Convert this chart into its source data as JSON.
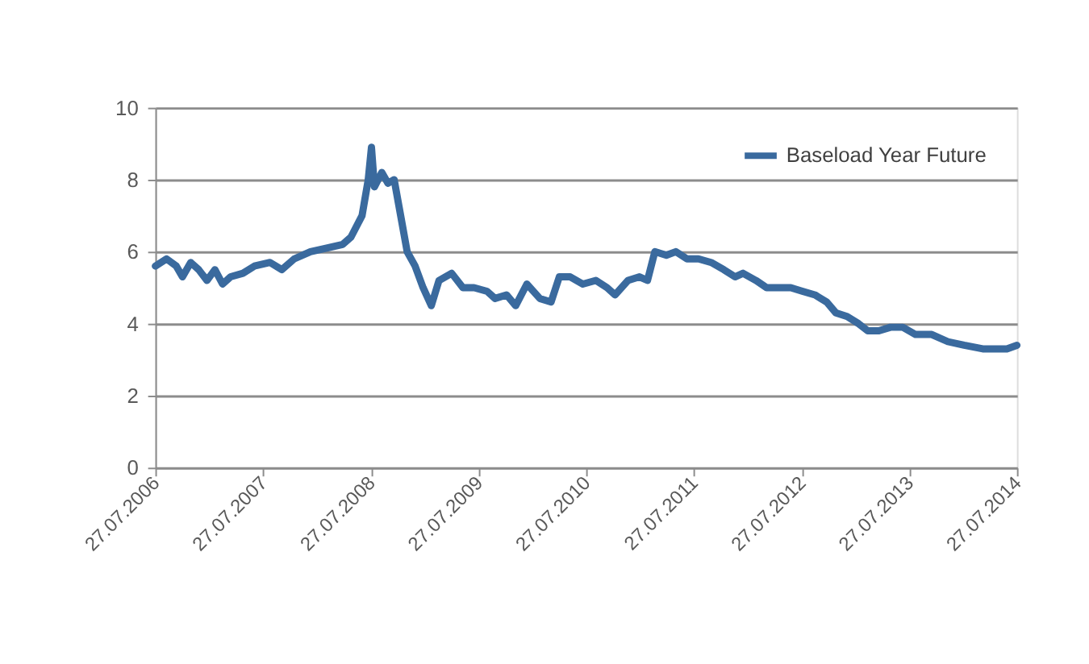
{
  "chart_data": {
    "type": "line",
    "x": [
      "2006-07-27",
      "2006-09-03",
      "2006-10-06",
      "2006-10-27",
      "2006-11-24",
      "2006-12-21",
      "2007-01-18",
      "2007-02-14",
      "2007-03-12",
      "2007-04-08",
      "2007-05-20",
      "2007-06-28",
      "2007-08-20",
      "2007-09-29",
      "2007-11-10",
      "2008-01-04",
      "2008-02-28",
      "2008-04-22",
      "2008-05-20",
      "2008-06-27",
      "2008-07-18",
      "2008-07-29",
      "2008-08-08",
      "2008-09-02",
      "2008-09-23",
      "2008-10-14",
      "2008-11-05",
      "2008-11-27",
      "2008-12-24",
      "2009-01-20",
      "2009-02-17",
      "2009-03-15",
      "2009-04-27",
      "2009-06-04",
      "2009-07-12",
      "2009-08-25",
      "2009-09-21",
      "2009-10-30",
      "2009-11-30",
      "2010-01-07",
      "2010-02-20",
      "2010-03-30",
      "2010-04-27",
      "2010-06-03",
      "2010-07-16",
      "2010-08-29",
      "2010-10-06",
      "2010-11-02",
      "2010-12-16",
      "2011-01-24",
      "2011-02-20",
      "2011-03-17",
      "2011-04-25",
      "2011-05-27",
      "2011-07-04",
      "2011-08-12",
      "2011-09-24",
      "2011-11-06",
      "2011-12-14",
      "2012-01-10",
      "2012-02-23",
      "2012-03-30",
      "2012-05-08",
      "2012-06-20",
      "2012-07-30",
      "2012-09-10",
      "2012-10-20",
      "2012-11-20",
      "2012-12-28",
      "2013-02-05",
      "2013-03-08",
      "2013-04-15",
      "2013-05-24",
      "2013-07-05",
      "2013-08-17",
      "2013-10-11",
      "2013-12-05",
      "2014-01-29",
      "2014-04-02",
      "2014-06-23",
      "2014-07-27"
    ],
    "series": [
      {
        "name": "Baseload Year Future",
        "color": "#3a6a9e",
        "values": [
          5.6,
          5.8,
          5.6,
          5.3,
          5.7,
          5.5,
          5.2,
          5.5,
          5.1,
          5.3,
          5.4,
          5.6,
          5.7,
          5.5,
          5.8,
          6.0,
          6.1,
          6.2,
          6.4,
          7.0,
          8.0,
          8.9,
          7.8,
          8.2,
          7.9,
          8.0,
          7.0,
          6.0,
          5.6,
          5.0,
          4.5,
          5.2,
          5.4,
          5.0,
          5.0,
          4.9,
          4.7,
          4.8,
          4.5,
          5.1,
          4.7,
          4.6,
          5.3,
          5.3,
          5.1,
          5.2,
          5.0,
          4.8,
          5.2,
          5.3,
          5.2,
          6.0,
          5.9,
          6.0,
          5.8,
          5.8,
          5.7,
          5.5,
          5.3,
          5.4,
          5.2,
          5.0,
          5.0,
          5.0,
          4.9,
          4.8,
          4.6,
          4.3,
          4.2,
          4.0,
          3.8,
          3.8,
          3.9,
          3.9,
          3.7,
          3.7,
          3.5,
          3.4,
          3.3,
          3.3,
          3.4
        ]
      }
    ],
    "xlim": [
      "2006-07-27",
      "2014-07-27"
    ],
    "xticks": [
      {
        "value": "2006-07-27",
        "label": "27.07.2006"
      },
      {
        "value": "2007-07-27",
        "label": "27.07.2007"
      },
      {
        "value": "2008-07-27",
        "label": "27.07.2008"
      },
      {
        "value": "2009-07-27",
        "label": "27.07.2009"
      },
      {
        "value": "2010-07-27",
        "label": "27.07.2010"
      },
      {
        "value": "2011-07-27",
        "label": "27.07.2011"
      },
      {
        "value": "2012-07-27",
        "label": "27.07.2012"
      },
      {
        "value": "2013-07-27",
        "label": "27.07.2013"
      },
      {
        "value": "2014-07-27",
        "label": "27.07.2014"
      }
    ],
    "ylim": [
      0,
      10
    ],
    "yticks": [
      0,
      2,
      4,
      6,
      8,
      10
    ],
    "grid": "y",
    "legend": "top right",
    "marker": "none",
    "line_style": "solid"
  }
}
